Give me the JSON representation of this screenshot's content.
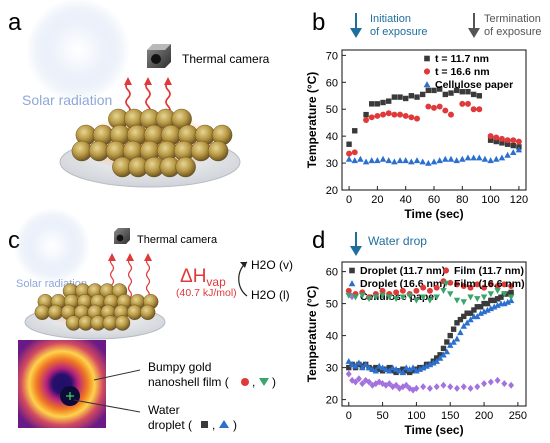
{
  "panels": {
    "a": {
      "letter": "a",
      "sun_label": "Solar radiation",
      "camera_label": "Thermal camera"
    },
    "c": {
      "letter": "c",
      "sun_label": "Solar radiation",
      "camera_label": "Thermal camera",
      "delta_h": "ΔH",
      "delta_h_sub": "vap",
      "delta_h_value": "(40.7 kJ/mol)",
      "water_vapor": "H2O (v)",
      "water_liquid": "H2O (l)",
      "film_label_line1": "Bumpy gold",
      "film_label_line2": "nanoshell film (",
      "film_label_end": ")",
      "droplet_label_line1": "Water",
      "droplet_label_line2": "droplet (",
      "droplet_label_end": ")",
      "comma": ","
    },
    "b": {
      "letter": "b",
      "arrow_start_line1": "Initiation",
      "arrow_start_line2": "of exposure",
      "arrow_end_line1": "Termination",
      "arrow_end_line2": "of exposure"
    },
    "d": {
      "letter": "d",
      "arrow_label": "Water drop"
    }
  },
  "chart_data": [
    {
      "id": "b",
      "type": "scatter",
      "xlabel": "Time (sec)",
      "ylabel": "Temperature (°C)",
      "xlim": [
        -5,
        125
      ],
      "ylim": [
        20,
        72
      ],
      "xticks": [
        0,
        20,
        40,
        60,
        80,
        100,
        120
      ],
      "yticks": [
        20,
        30,
        40,
        50,
        60,
        70
      ],
      "legend_position": "top-right",
      "series": [
        {
          "name": "t = 11.7 nm",
          "marker": "square",
          "color": "#3a3a3a",
          "x": [
            0,
            4,
            12,
            16,
            20,
            24,
            28,
            32,
            36,
            40,
            44,
            48,
            52,
            56,
            60,
            64,
            68,
            72,
            76,
            80,
            84,
            88,
            92,
            100,
            104,
            108,
            112,
            116,
            120
          ],
          "y": [
            37,
            42,
            48,
            52,
            52,
            52.5,
            53,
            54.5,
            54.5,
            54,
            55,
            54.5,
            55.5,
            57,
            57,
            57.5,
            55.5,
            56,
            57,
            56.5,
            56.5,
            55.5,
            55,
            38.5,
            38,
            37.5,
            37,
            36.5,
            36
          ]
        },
        {
          "name": "t = 16.6 nm",
          "marker": "circle",
          "color": "#e0393a",
          "x": [
            0,
            4,
            12,
            16,
            20,
            24,
            28,
            32,
            36,
            40,
            44,
            48,
            56,
            60,
            64,
            68,
            72,
            80,
            84,
            88,
            92,
            100,
            104,
            108,
            112,
            116,
            120
          ],
          "y": [
            33.5,
            34,
            46,
            47,
            47.5,
            48,
            48.5,
            48,
            48,
            47.5,
            47,
            46.5,
            51,
            50.5,
            51,
            49.5,
            48,
            52,
            52,
            50,
            50,
            40,
            39.5,
            39,
            38.5,
            38.5,
            38
          ]
        },
        {
          "name": "Cellulose paper",
          "marker": "triangle",
          "color": "#2b6fcf",
          "x": [
            0,
            4,
            8,
            12,
            16,
            20,
            24,
            28,
            32,
            36,
            40,
            44,
            48,
            52,
            56,
            60,
            64,
            68,
            72,
            76,
            80,
            84,
            88,
            92,
            96,
            100,
            104,
            108,
            112,
            116,
            120
          ],
          "y": [
            31.5,
            31,
            31.5,
            30.5,
            31,
            31,
            31.5,
            31,
            30.5,
            31,
            31,
            30.5,
            31,
            30.5,
            30,
            30.5,
            31,
            31.5,
            31.5,
            31,
            31.5,
            32,
            32,
            32,
            31.5,
            31,
            31.5,
            32,
            33,
            34,
            35
          ]
        }
      ]
    },
    {
      "id": "d",
      "type": "scatter",
      "xlabel": "Time (sec)",
      "ylabel": "Temperature (°C)",
      "xlim": [
        -10,
        262
      ],
      "ylim": [
        18,
        63
      ],
      "xticks": [
        0,
        50,
        100,
        150,
        200,
        250
      ],
      "yticks": [
        20,
        30,
        40,
        50,
        60
      ],
      "legend_position": "top",
      "series": [
        {
          "name": "Droplet (11.7 nm)",
          "marker": "square",
          "color": "#3a3a3a",
          "x": [
            0,
            5,
            10,
            15,
            20,
            25,
            30,
            35,
            40,
            45,
            50,
            55,
            60,
            65,
            70,
            75,
            80,
            85,
            90,
            95,
            100,
            105,
            110,
            115,
            120,
            125,
            130,
            135,
            140,
            145,
            150,
            155,
            160,
            165,
            170,
            175,
            180,
            185,
            190,
            195,
            200,
            205,
            210,
            215,
            220,
            225,
            230,
            235,
            240
          ],
          "y": [
            30,
            31,
            30,
            31,
            30.5,
            31,
            30,
            29.5,
            30,
            29.5,
            29,
            29.5,
            30,
            29,
            28.5,
            29,
            29.5,
            29,
            28.5,
            29,
            29.5,
            30,
            30,
            31,
            31,
            32,
            33,
            34,
            36,
            38,
            40,
            42,
            44,
            45,
            46,
            47,
            47,
            48,
            49,
            49,
            50,
            50,
            51,
            51,
            51.5,
            52,
            53,
            53,
            53.5
          ]
        },
        {
          "name": "Droplet (16.6 nm)",
          "marker": "triangle",
          "color": "#2b6fcf",
          "x": [
            0,
            5,
            10,
            15,
            20,
            25,
            30,
            35,
            40,
            45,
            50,
            55,
            60,
            65,
            70,
            75,
            80,
            85,
            90,
            95,
            100,
            105,
            110,
            115,
            120,
            125,
            130,
            135,
            140,
            145,
            150,
            155,
            160,
            165,
            170,
            175,
            180,
            185,
            190,
            195,
            200,
            205,
            210,
            215,
            220,
            225,
            230,
            235,
            240
          ],
          "y": [
            32,
            31,
            30.5,
            31.5,
            30,
            31,
            30,
            29.5,
            29,
            30.5,
            30,
            29.5,
            29,
            30,
            29.5,
            29,
            28.5,
            30,
            29.5,
            30,
            29,
            29.5,
            30,
            30.5,
            31,
            31.5,
            32,
            33,
            34,
            35,
            37,
            38,
            39,
            41,
            43,
            44,
            45,
            46,
            46,
            47,
            47.5,
            48,
            48.5,
            49,
            49.5,
            50,
            50,
            50.5,
            51
          ]
        },
        {
          "name": "Cellulose paper",
          "marker": "diamond",
          "color": "#a372de",
          "x": [
            0,
            5,
            10,
            15,
            20,
            25,
            30,
            35,
            40,
            45,
            50,
            55,
            60,
            65,
            70,
            75,
            80,
            85,
            90,
            95,
            100,
            110,
            120,
            130,
            140,
            150,
            160,
            170,
            180,
            190,
            200,
            210,
            220,
            230,
            240
          ],
          "y": [
            28,
            26,
            25.5,
            26.5,
            25,
            26,
            25.5,
            24.5,
            25,
            25.5,
            25,
            24.5,
            25,
            24,
            24.5,
            23.5,
            24,
            24.5,
            23.5,
            23,
            23.5,
            24,
            23.5,
            24,
            24.5,
            24,
            23.5,
            24,
            23.5,
            24,
            25,
            25.5,
            26,
            25,
            24.5
          ]
        },
        {
          "name": "Film (11.7 nm)",
          "marker": "circle",
          "color": "#e0393a",
          "x": [
            0,
            10,
            20,
            30,
            40,
            50,
            60,
            70,
            80,
            90,
            100,
            110,
            120,
            130,
            140,
            150,
            160,
            170,
            180,
            190,
            200,
            210,
            220,
            230,
            240
          ],
          "y": [
            54,
            53,
            53.5,
            52,
            53,
            54,
            53,
            53.5,
            54,
            53,
            54,
            55,
            54,
            55,
            57,
            56.5,
            56,
            55.5,
            55,
            56,
            55,
            56,
            55.5,
            56,
            55.5
          ]
        },
        {
          "name": "Film (16.6 nm)",
          "marker": "triangle-down",
          "color": "#3aa56a",
          "x": [
            0,
            10,
            20,
            30,
            40,
            50,
            60,
            70,
            80,
            90,
            100,
            110,
            120,
            130,
            140,
            150,
            160,
            170,
            180,
            190,
            200,
            210,
            220,
            230,
            240
          ],
          "y": [
            52.5,
            52,
            52.5,
            51.5,
            52,
            52.5,
            52,
            51.5,
            52,
            52.5,
            51,
            52,
            51,
            52,
            54,
            53,
            51,
            50.5,
            52,
            51.5,
            52,
            53,
            54,
            53,
            52
          ]
        }
      ]
    }
  ]
}
